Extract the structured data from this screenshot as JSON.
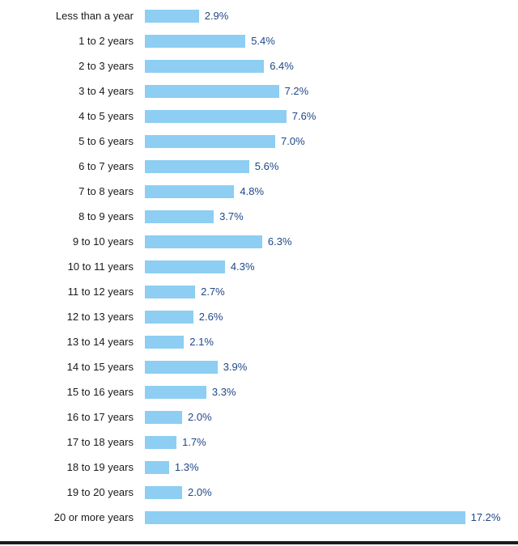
{
  "chart_data": {
    "type": "bar",
    "orientation": "horizontal",
    "title": "",
    "xlabel": "",
    "ylabel": "",
    "xlim": [
      0,
      18
    ],
    "grid": false,
    "legend": false,
    "bar_color": "#8dcef2",
    "value_label_color": "#1f4788",
    "category_label_color": "#1a1a1a",
    "axis_line_color": "#1c1c1c",
    "categories": [
      "Less than a year",
      "1 to 2 years",
      "2 to 3 years",
      "3 to 4 years",
      "4 to 5 years",
      "5 to 6 years",
      "6 to 7 years",
      "7 to 8 years",
      "8 to 9 years",
      "9 to 10 years",
      "10 to 11 years",
      "11 to 12 years",
      "12 to 13 years",
      "13 to 14 years",
      "14 to 15 years",
      "15 to 16 years",
      "16 to 17 years",
      "17 to 18 years",
      "18 to 19 years",
      "19 to 20 years",
      "20 or more years"
    ],
    "values": [
      2.9,
      5.4,
      6.4,
      7.2,
      7.6,
      7.0,
      5.6,
      4.8,
      3.7,
      6.3,
      4.3,
      2.7,
      2.6,
      2.1,
      3.9,
      3.3,
      2.0,
      1.7,
      1.3,
      2.0,
      17.2
    ],
    "value_labels": [
      "2.9%",
      "5.4%",
      "6.4%",
      "7.2%",
      "7.6%",
      "7.0%",
      "5.6%",
      "4.8%",
      "3.7%",
      "6.3%",
      "4.3%",
      "2.7%",
      "2.6%",
      "2.1%",
      "3.9%",
      "3.3%",
      "2.0%",
      "1.7%",
      "1.3%",
      "2.0%",
      "17.2%"
    ]
  }
}
